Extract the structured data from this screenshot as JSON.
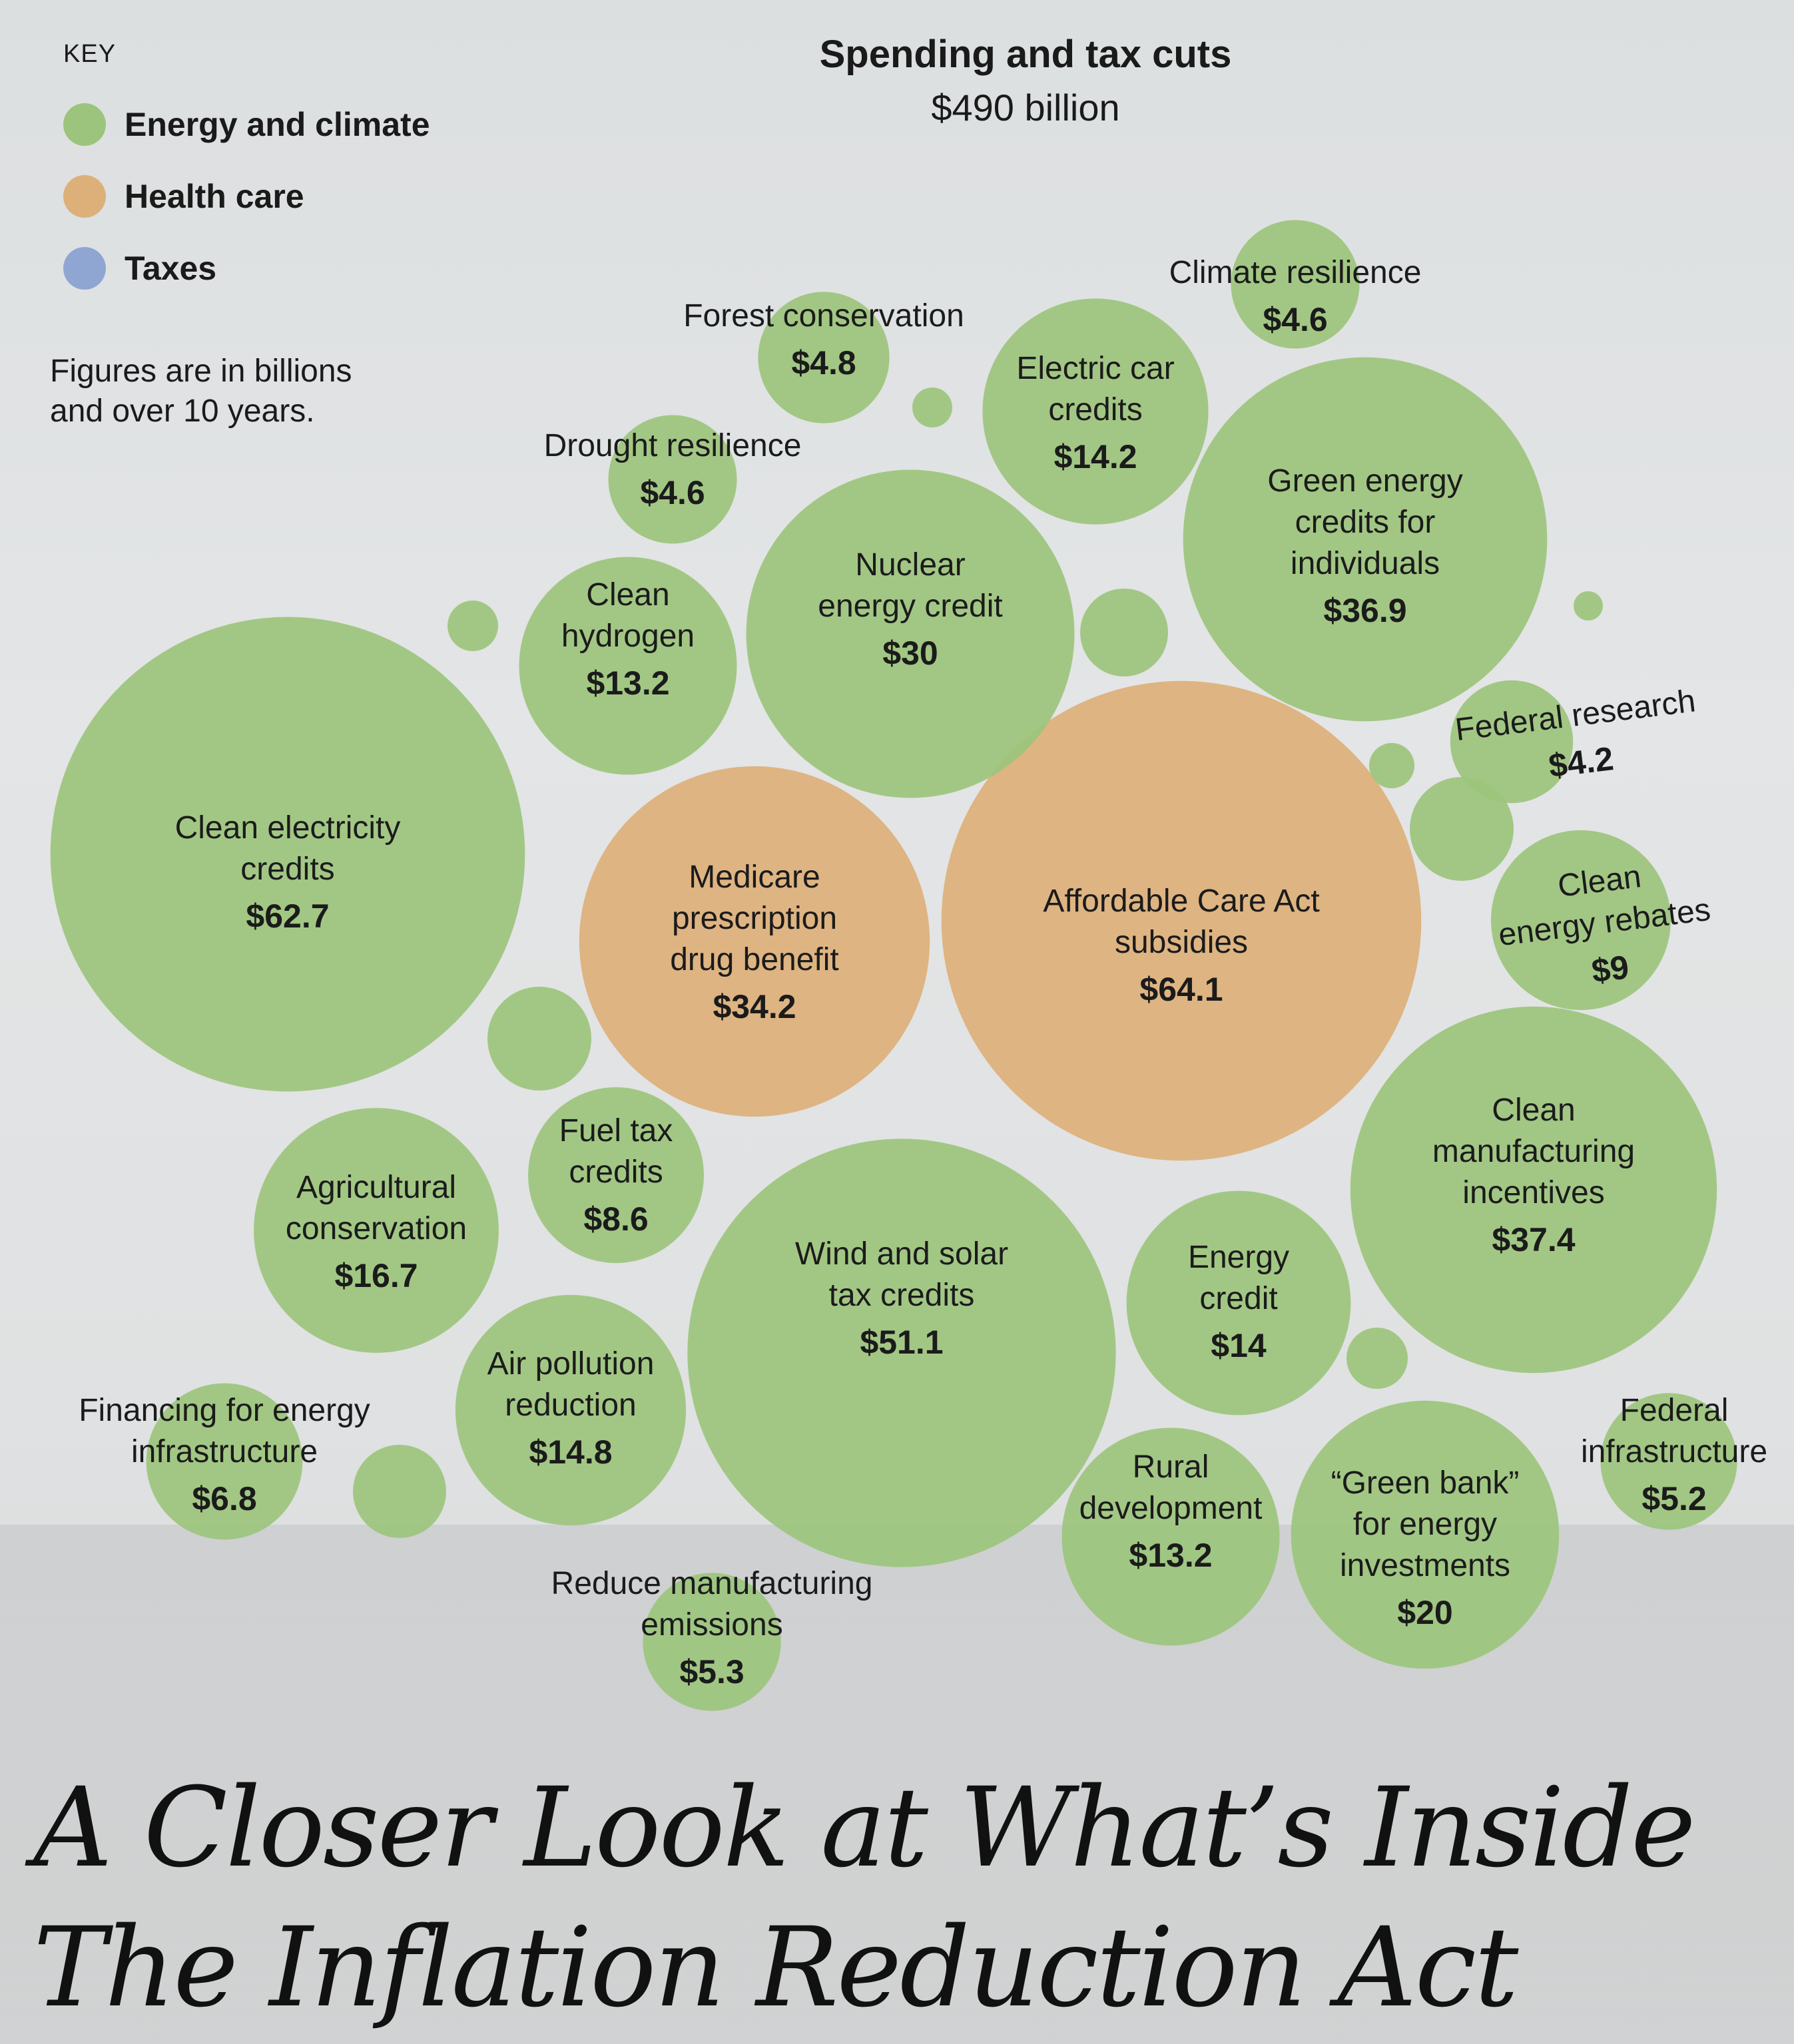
{
  "key": {
    "title": "KEY",
    "items": [
      {
        "label": "Energy and climate",
        "color": "#9cc47c"
      },
      {
        "label": "Health care",
        "color": "#ddb07a"
      },
      {
        "label": "Taxes",
        "color": "#8fa6d2"
      }
    ]
  },
  "note": {
    "line1": "Figures are in billions",
    "line2": "and over 10 years."
  },
  "header": {
    "title": "Spending and tax cuts",
    "total": "$490 billion"
  },
  "headline": {
    "line1": "A Closer Look at What’s Inside",
    "line2": "The Inflation Reduction Act"
  },
  "chart_data": {
    "type": "bubble",
    "title": "Spending and tax cuts",
    "subtitle": "$490 billion",
    "units": "billions of dollars over 10 years",
    "categories": [
      "Energy and climate",
      "Health care",
      "Taxes"
    ],
    "bubbles": [
      {
        "name": "Clean electricity credits",
        "lines": [
          "Clean electricity",
          "credits"
        ],
        "value": 62.7,
        "display": "$62.7",
        "category": "Energy and climate"
      },
      {
        "name": "Affordable Care Act subsidies",
        "lines": [
          "Affordable Care Act",
          "subsidies"
        ],
        "value": 64.1,
        "display": "$64.1",
        "category": "Health care"
      },
      {
        "name": "Medicare prescription drug benefit",
        "lines": [
          "Medicare",
          "prescription",
          "drug benefit"
        ],
        "value": 34.2,
        "display": "$34.2",
        "category": "Health care"
      },
      {
        "name": "Wind and solar tax credits",
        "lines": [
          "Wind and solar",
          "tax credits"
        ],
        "value": 51.1,
        "display": "$51.1",
        "category": "Energy and climate"
      },
      {
        "name": "Clean manufacturing incentives",
        "lines": [
          "Clean",
          "manufacturing",
          "incentives"
        ],
        "value": 37.4,
        "display": "$37.4",
        "category": "Energy and climate"
      },
      {
        "name": "Green energy credits for individuals",
        "lines": [
          "Green energy",
          "credits for",
          "individuals"
        ],
        "value": 36.9,
        "display": "$36.9",
        "category": "Energy and climate"
      },
      {
        "name": "Nuclear energy credit",
        "lines": [
          "Nuclear",
          "energy credit"
        ],
        "value": 30,
        "display": "$30",
        "category": "Energy and climate"
      },
      {
        "name": "“Green bank” for energy investments",
        "lines": [
          "“Green bank”",
          "for energy",
          "investments"
        ],
        "value": 20,
        "display": "$20",
        "category": "Energy and climate"
      },
      {
        "name": "Agricultural conservation",
        "lines": [
          "Agricultural",
          "conservation"
        ],
        "value": 16.7,
        "display": "$16.7",
        "category": "Energy and climate"
      },
      {
        "name": "Air pollution reduction",
        "lines": [
          "Air pollution",
          "reduction"
        ],
        "value": 14.8,
        "display": "$14.8",
        "category": "Energy and climate"
      },
      {
        "name": "Electric car credits",
        "lines": [
          "Electric car",
          "credits"
        ],
        "value": 14.2,
        "display": "$14.2",
        "category": "Energy and climate"
      },
      {
        "name": "Energy credit",
        "lines": [
          "Energy",
          "credit"
        ],
        "value": 14,
        "display": "$14",
        "category": "Energy and climate"
      },
      {
        "name": "Clean hydrogen",
        "lines": [
          "Clean",
          "hydrogen"
        ],
        "value": 13.2,
        "display": "$13.2",
        "category": "Energy and climate"
      },
      {
        "name": "Rural development",
        "lines": [
          "Rural",
          "development"
        ],
        "value": 13.2,
        "display": "$13.2",
        "category": "Energy and climate"
      },
      {
        "name": "Clean energy rebates",
        "lines": [
          "Clean",
          "energy rebates"
        ],
        "value": 9,
        "display": "$9",
        "category": "Energy and climate"
      },
      {
        "name": "Fuel tax credits",
        "lines": [
          "Fuel tax",
          "credits"
        ],
        "value": 8.6,
        "display": "$8.6",
        "category": "Energy and climate"
      },
      {
        "name": "Financing for energy infrastructure",
        "lines": [
          "Financing for energy",
          "infrastructure"
        ],
        "value": 6.8,
        "display": "$6.8",
        "category": "Energy and climate"
      },
      {
        "name": "Reduce manufacturing emissions",
        "lines": [
          "Reduce manufacturing",
          "emissions"
        ],
        "value": 5.3,
        "display": "$5.3",
        "category": "Energy and climate"
      },
      {
        "name": "Federal infrastructure",
        "lines": [
          "Federal",
          "infrastructure"
        ],
        "value": 5.2,
        "display": "$5.2",
        "category": "Energy and climate"
      },
      {
        "name": "Forest conservation",
        "lines": [
          "Forest conservation"
        ],
        "value": 4.8,
        "display": "$4.8",
        "category": "Energy and climate"
      },
      {
        "name": "Drought resilience",
        "lines": [
          "Drought resilience"
        ],
        "value": 4.6,
        "display": "$4.6",
        "category": "Energy and climate"
      },
      {
        "name": "Climate resilience",
        "lines": [
          "Climate resilience"
        ],
        "value": 4.6,
        "display": "$4.6",
        "category": "Energy and climate"
      },
      {
        "name": "Federal research",
        "lines": [
          "Federal research"
        ],
        "value": 4.2,
        "display": "$4.2",
        "category": "Energy and climate"
      }
    ],
    "unlabeled_bubbles": 11
  }
}
